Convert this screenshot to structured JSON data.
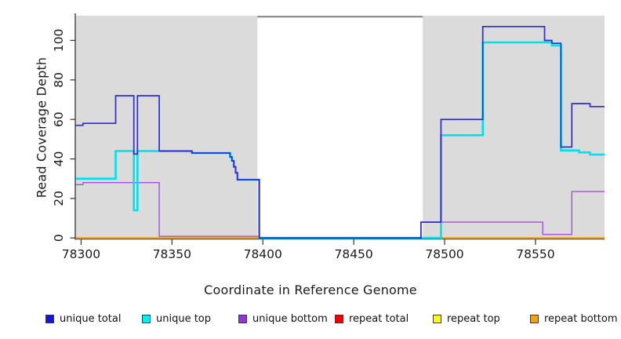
{
  "figure_title": "",
  "chart_data": {
    "type": "line",
    "subtype": "step-coverage",
    "xlabel": "Coordinate in Reference Genome",
    "ylabel": "Read Coverage Depth",
    "xlim": [
      78297,
      78588
    ],
    "ylim": [
      -0.7,
      112.5
    ],
    "x_ticks": [
      78300,
      78350,
      78400,
      78450,
      78500,
      78550
    ],
    "y_ticks": [
      0,
      20,
      40,
      60,
      80,
      100
    ],
    "grid": false,
    "background_color": "#ffffff",
    "shaded_region_color": "#dbdbdb",
    "shaded_regions": [
      {
        "from": 78297,
        "to": 78397
      },
      {
        "from": 78488,
        "to": 78588
      }
    ],
    "gap_overline": {
      "from": 78397,
      "to": 78488,
      "depth": 112,
      "color": "#7f7f7f"
    },
    "steps_format": "[coordinate, depth] — depth holds until next coordinate",
    "series": [
      {
        "name": "repeat total",
        "color": "#dd1111",
        "width": 1.2,
        "steps": [
          [
            78297,
            0
          ]
        ]
      },
      {
        "name": "repeat top",
        "color": "#ffff00",
        "width": 1.2,
        "steps": [
          [
            78297,
            0
          ]
        ]
      },
      {
        "name": "repeat bottom",
        "color": "#ff9e00",
        "width": 2.0,
        "steps": [
          [
            78297,
            0
          ]
        ]
      },
      {
        "name": "unique bottom",
        "color": "#a44fd8",
        "width": 1.4,
        "steps": [
          [
            78297,
            27
          ],
          [
            78301,
            28
          ],
          [
            78343,
            0.8
          ],
          [
            78398,
            0
          ],
          [
            78487,
            8
          ],
          [
            78554,
            1.8
          ],
          [
            78570,
            23.5
          ]
        ]
      },
      {
        "name": "unique top",
        "color": "#00e0ee",
        "width": 2.6,
        "steps": [
          [
            78297,
            30
          ],
          [
            78319,
            44
          ],
          [
            78329,
            14
          ],
          [
            78331,
            44
          ],
          [
            78361,
            43
          ],
          [
            78382,
            41
          ],
          [
            78383,
            39
          ],
          [
            78384,
            36
          ],
          [
            78385,
            33
          ],
          [
            78386,
            29.5
          ],
          [
            78398,
            0
          ],
          [
            78498,
            52
          ],
          [
            78521,
            99
          ],
          [
            78559,
            97.5
          ],
          [
            78564,
            44.3
          ],
          [
            78574,
            43.3
          ],
          [
            78580,
            42.2
          ]
        ]
      },
      {
        "name": "unique total",
        "color": "#2b2be0",
        "width": 1.7,
        "steps": [
          [
            78297,
            57
          ],
          [
            78301,
            58
          ],
          [
            78319,
            72
          ],
          [
            78329,
            42.5
          ],
          [
            78331,
            72
          ],
          [
            78343,
            44
          ],
          [
            78361,
            43
          ],
          [
            78382,
            41
          ],
          [
            78383,
            39
          ],
          [
            78384,
            36
          ],
          [
            78385,
            33
          ],
          [
            78386,
            29.5
          ],
          [
            78398,
            0
          ],
          [
            78487,
            8
          ],
          [
            78498,
            60
          ],
          [
            78521,
            107
          ],
          [
            78555,
            100
          ],
          [
            78559,
            98.5
          ],
          [
            78564,
            46
          ],
          [
            78570,
            68
          ],
          [
            78580,
            66.5
          ]
        ]
      }
    ],
    "legend_position": "bottom"
  },
  "axis_text_color": "#1a1a1a",
  "legend": {
    "items": [
      {
        "label": "unique total",
        "color": "#1414e0"
      },
      {
        "label": "unique top",
        "color": "#00eeee"
      },
      {
        "label": "unique bottom",
        "color": "#9632dc"
      },
      {
        "label": "repeat total",
        "color": "#ee0000"
      },
      {
        "label": "repeat top",
        "color": "#ffff00"
      },
      {
        "label": "repeat bottom",
        "color": "#ffa000"
      }
    ]
  }
}
